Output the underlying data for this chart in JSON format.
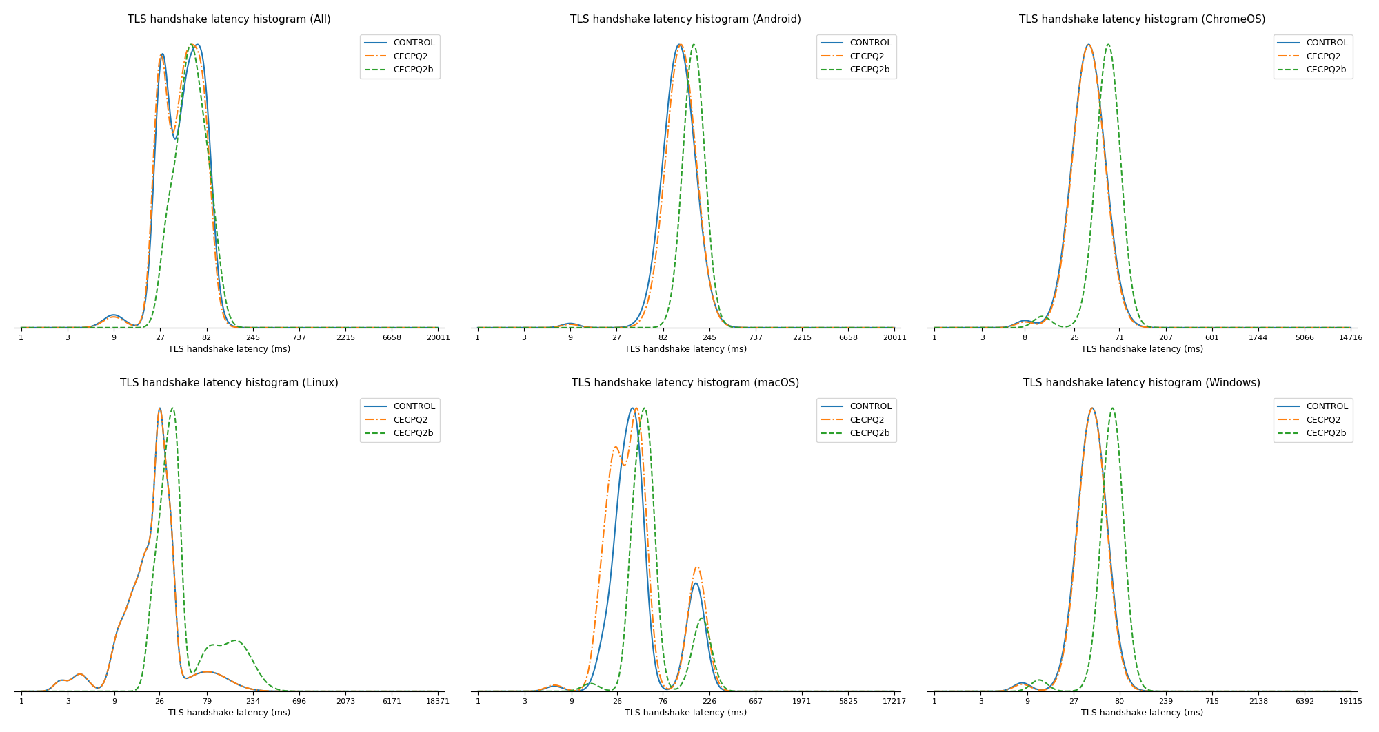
{
  "subplots": [
    {
      "title": "TLS handshake latency histogram (All)",
      "xlabel": "TLS handshake latency (ms)",
      "xticks": [
        1,
        3,
        9,
        27,
        82,
        245,
        737,
        2215,
        6658,
        20011
      ],
      "shape": "all"
    },
    {
      "title": "TLS handshake latency histogram (Android)",
      "xlabel": "TLS handshake latency (ms)",
      "xticks": [
        1,
        3,
        9,
        27,
        82,
        245,
        737,
        2215,
        6658,
        20011
      ],
      "shape": "android"
    },
    {
      "title": "TLS handshake latency histogram (ChromeOS)",
      "xlabel": "TLS handshake latency (ms)",
      "xticks": [
        1,
        3,
        8,
        25,
        71,
        207,
        601,
        1744,
        5066,
        14716
      ],
      "shape": "chromeos"
    },
    {
      "title": "TLS handshake latency histogram (Linux)",
      "xlabel": "TLS handshake latency (ms)",
      "xticks": [
        1,
        3,
        9,
        26,
        79,
        234,
        696,
        2073,
        6171,
        18371
      ],
      "shape": "linux"
    },
    {
      "title": "TLS handshake latency histogram (macOS)",
      "xlabel": "TLS handshake latency (ms)",
      "xticks": [
        1,
        3,
        9,
        26,
        76,
        226,
        667,
        1971,
        5825,
        17217
      ],
      "shape": "macos"
    },
    {
      "title": "TLS handshake latency histogram (Windows)",
      "xlabel": "TLS handshake latency (ms)",
      "xticks": [
        1,
        3,
        9,
        27,
        80,
        239,
        715,
        2138,
        6392,
        19115
      ],
      "shape": "windows"
    }
  ],
  "legend_labels": [
    "CONTROL",
    "CECPQ2",
    "CECPQ2b"
  ],
  "control_color": "#1f77b4",
  "cecpq2_color": "#ff7f0e",
  "cecpq2b_color": "#2ca02c",
  "control_style": "-",
  "cecpq2_style": "-.",
  "cecpq2b_style": "--",
  "linewidth": 1.5,
  "background_color": "#ffffff"
}
